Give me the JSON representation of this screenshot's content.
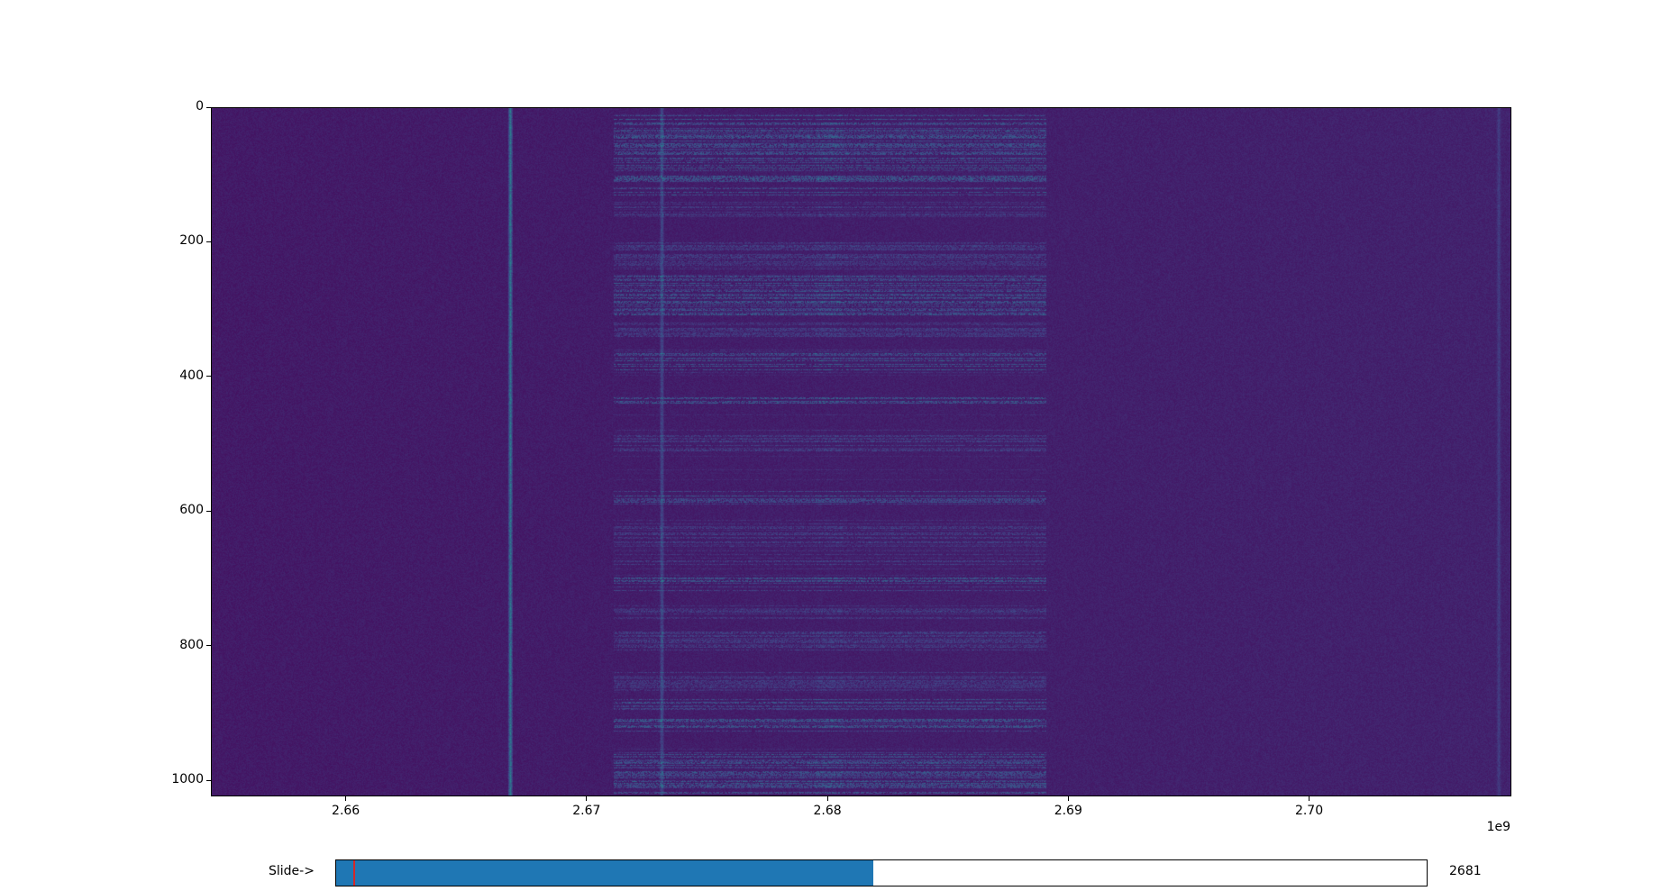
{
  "chart_data": {
    "type": "heatmap",
    "title": "",
    "xlabel": "",
    "ylabel": "",
    "colormap": "viridis",
    "xlim": [
      2654400000,
      2708400000
    ],
    "ylim": [
      1024,
      0
    ],
    "x_offset_text": "1e9",
    "xticks": [
      {
        "value": 2660000000,
        "label": "2.66"
      },
      {
        "value": 2670000000,
        "label": "2.67"
      },
      {
        "value": 2680000000,
        "label": "2.68"
      },
      {
        "value": 2690000000,
        "label": "2.69"
      },
      {
        "value": 2700000000,
        "label": "2.70"
      }
    ],
    "yticks": [
      {
        "value": 0,
        "label": "0"
      },
      {
        "value": 200,
        "label": "200"
      },
      {
        "value": 400,
        "label": "400"
      },
      {
        "value": 600,
        "label": "600"
      },
      {
        "value": 800,
        "label": "800"
      },
      {
        "value": 1000,
        "label": "1000"
      }
    ],
    "features": {
      "continuous_lines_hz": [
        2666800000,
        2673100000,
        2707900000
      ],
      "burst_band_hz": [
        2671100000,
        2689100000
      ],
      "burst_center_band_hz": [
        2679500000,
        2680600000
      ],
      "strong_burst_rows": [
        [
          10,
          130
        ],
        [
          250,
          310
        ],
        [
          365,
          390
        ],
        [
          430,
          440
        ],
        [
          570,
          590
        ],
        [
          700,
          720
        ],
        [
          880,
          930
        ],
        [
          960,
          1020
        ]
      ],
      "weak_burst_rows": [
        [
          140,
          160
        ],
        [
          200,
          240
        ],
        [
          320,
          340
        ],
        [
          480,
          510
        ],
        [
          620,
          680
        ],
        [
          740,
          760
        ],
        [
          780,
          810
        ],
        [
          840,
          870
        ]
      ]
    },
    "grid": false
  },
  "slider": {
    "label": "Slide->",
    "value": 2681,
    "value_text": "2681",
    "min": 2654.4,
    "max": 2708.4,
    "initial": 2654.7,
    "fill_color": "#1f77b4",
    "initial_marker_color": "#d62728"
  }
}
